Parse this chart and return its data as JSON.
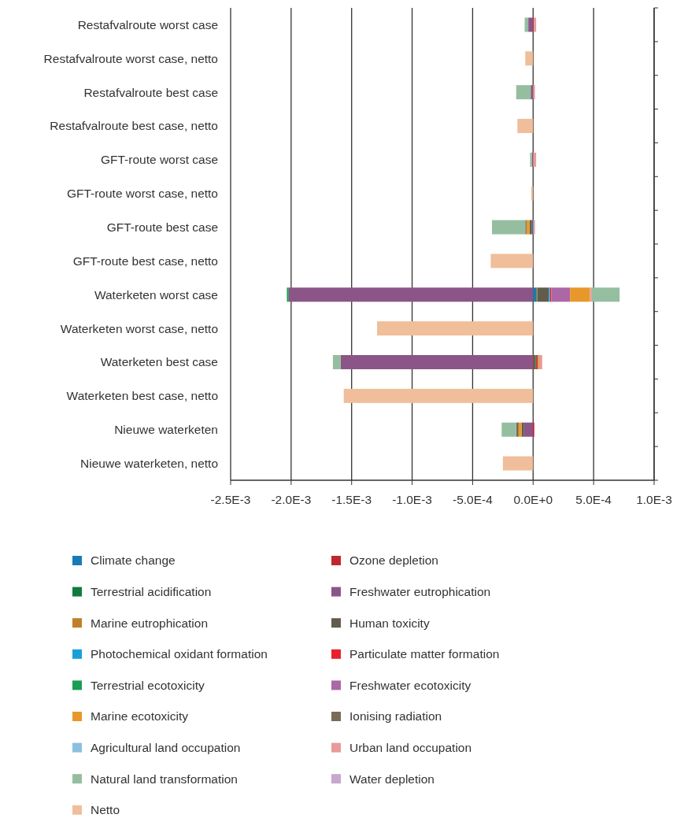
{
  "chart_data": {
    "type": "bar",
    "orientation": "horizontal",
    "stacked": true,
    "grid": "x",
    "legend": "bottom",
    "categories": [
      "Restafvalroute worst case",
      "Restafvalroute worst case, netto",
      "Restafvalroute best case",
      "Restafvalroute best case, netto",
      "GFT-route worst case",
      "GFT-route worst case, netto",
      "GFT-route best case",
      "GFT-route best case, netto",
      "Waterketen worst case",
      "Waterketen worst case, netto",
      "Waterketen best case",
      "Waterketen best case, netto",
      "Nieuwe waterketen",
      "Nieuwe waterketen, netto"
    ],
    "xlim": [
      -0.0025,
      0.001
    ],
    "xticks": [
      {
        "value": -0.0025,
        "label": "-2.5E-3"
      },
      {
        "value": -0.002,
        "label": "-2.0E-3"
      },
      {
        "value": -0.0015,
        "label": "-1.5E-3"
      },
      {
        "value": -0.001,
        "label": "-1.0E-3"
      },
      {
        "value": -0.0005,
        "label": "-5.0E-4"
      },
      {
        "value": 0,
        "label": "0.0E+0"
      },
      {
        "value": 0.0005,
        "label": "5.0E-4"
      },
      {
        "value": 0.001,
        "label": "1.0E-3"
      }
    ],
    "series": [
      {
        "name": "Climate change",
        "color": "#1a7ab5",
        "values": [
          null,
          null,
          null,
          null,
          null,
          null,
          -1e-05,
          null,
          2.5e-05,
          null,
          null,
          null,
          null,
          null
        ]
      },
      {
        "name": "Ozone depletion",
        "color": "#c0272d",
        "values": [
          5e-06,
          null,
          null,
          null,
          null,
          null,
          null,
          null,
          null,
          null,
          1e-05,
          null,
          null,
          null
        ]
      },
      {
        "name": "Terrestrial acidification",
        "color": "#137a3e",
        "values": [
          null,
          null,
          null,
          null,
          null,
          null,
          null,
          null,
          5e-06,
          null,
          1e-05,
          null,
          null,
          null
        ]
      },
      {
        "name": "Freshwater eutrophication",
        "color": "#8c5587",
        "values": [
          -4e-05,
          null,
          -2e-05,
          null,
          -1e-05,
          null,
          null,
          null,
          -0.00202,
          null,
          -0.00159,
          null,
          -7.5e-05,
          null
        ]
      },
      {
        "name": "Marine eutrophication",
        "color": "#c17f2b",
        "values": [
          null,
          null,
          null,
          null,
          null,
          null,
          null,
          null,
          5e-06,
          null,
          null,
          null,
          null,
          null
        ]
      },
      {
        "name": "Human toxicity",
        "color": "#625c4d",
        "values": [
          null,
          null,
          null,
          null,
          null,
          null,
          -2e-05,
          null,
          9.5e-05,
          null,
          1e-05,
          null,
          -2e-05,
          null
        ]
      },
      {
        "name": "Photochemical oxidant formation",
        "color": "#1aa0d8",
        "values": [
          null,
          null,
          null,
          null,
          null,
          null,
          null,
          null,
          1e-05,
          null,
          null,
          null,
          null,
          null
        ]
      },
      {
        "name": "Particulate matter formation",
        "color": "#e8212f",
        "values": [
          null,
          null,
          null,
          null,
          null,
          null,
          null,
          null,
          1e-05,
          null,
          1e-05,
          null,
          1e-05,
          null
        ]
      },
      {
        "name": "Terrestrial ecotoxicity",
        "color": "#1a9e50",
        "values": [
          null,
          null,
          null,
          null,
          null,
          null,
          null,
          null,
          -1.5e-05,
          null,
          null,
          null,
          null,
          null
        ]
      },
      {
        "name": "Freshwater ecotoxicity",
        "color": "#ab67a6",
        "values": [
          null,
          null,
          null,
          null,
          null,
          null,
          null,
          null,
          0.000155,
          null,
          null,
          null,
          null,
          null
        ]
      },
      {
        "name": "Marine ecotoxicity",
        "color": "#e8982a",
        "values": [
          null,
          null,
          null,
          null,
          null,
          null,
          -2.5e-05,
          null,
          0.000165,
          null,
          1e-05,
          null,
          -2.5e-05,
          null
        ]
      },
      {
        "name": "Ionising radiation",
        "color": "#7a6b57",
        "values": [
          null,
          null,
          null,
          null,
          null,
          null,
          -1e-05,
          null,
          null,
          null,
          null,
          null,
          -2e-05,
          null
        ]
      },
      {
        "name": "Agricultural land occupation",
        "color": "#8bbfe0",
        "values": [
          null,
          null,
          null,
          null,
          null,
          null,
          null,
          null,
          null,
          null,
          null,
          null,
          null,
          null
        ]
      },
      {
        "name": "Urban land occupation",
        "color": "#e89b98",
        "values": [
          2e-05,
          null,
          1.5e-05,
          null,
          2.5e-05,
          null,
          1.5e-05,
          null,
          1.5e-05,
          null,
          2.5e-05,
          null,
          null,
          null
        ]
      },
      {
        "name": "Natural land transformation",
        "color": "#95bea0",
        "values": [
          -3e-05,
          null,
          -0.00012,
          null,
          -1.5e-05,
          null,
          -0.000275,
          null,
          0.00023,
          null,
          -6.5e-05,
          null,
          -0.00012,
          null
        ]
      },
      {
        "name": "Water depletion",
        "color": "#c5a8cb",
        "values": [
          null,
          null,
          null,
          null,
          null,
          null,
          null,
          null,
          null,
          null,
          null,
          null,
          null,
          null
        ]
      },
      {
        "name": "Netto",
        "color": "#f0be9a",
        "values": [
          null,
          -6.5e-05,
          null,
          -0.00013,
          null,
          -1.5e-05,
          null,
          -0.00035,
          null,
          -0.00129,
          null,
          -0.001565,
          null,
          -0.00025
        ]
      }
    ]
  }
}
